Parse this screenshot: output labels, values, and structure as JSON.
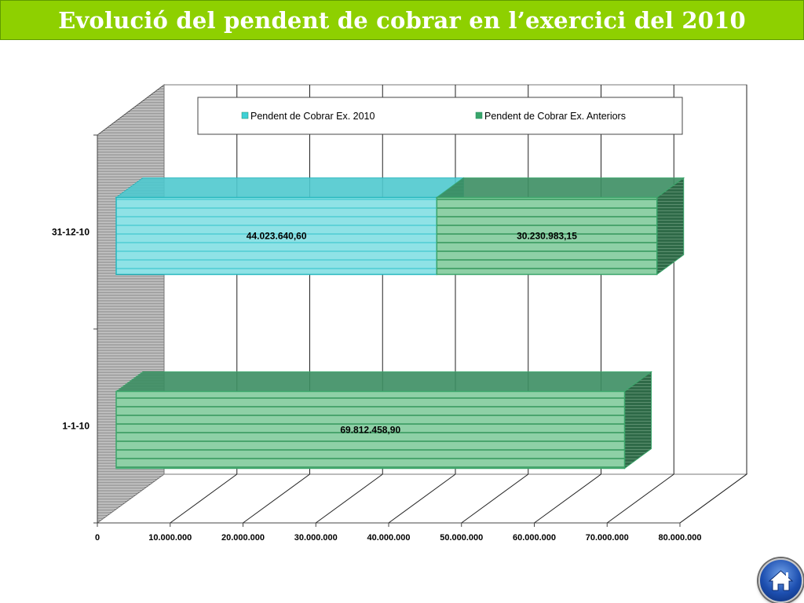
{
  "header": {
    "title": "Evolució del pendent de cobrar en l’exercici del 2010"
  },
  "chart_data": {
    "type": "bar",
    "orientation": "horizontal",
    "stacked": true,
    "three_d": true,
    "categories": [
      "31-12-10",
      "1-1-10"
    ],
    "series": [
      {
        "name": "Pendent de Cobrar Ex. 2010",
        "values": [
          44023640.6,
          0
        ],
        "labels": [
          "44.023.640,60",
          ""
        ],
        "color": "#3fd0d6"
      },
      {
        "name": "Pendent de Cobrar Ex. Anteriors",
        "values": [
          30230983.15,
          69812458.9
        ],
        "labels": [
          "30.230.983,15",
          "69.812.458,90"
        ],
        "color": "#3aa56a"
      }
    ],
    "x_ticks": [
      "0",
      "10.000.000",
      "20.000.000",
      "30.000.000",
      "40.000.000",
      "50.000.000",
      "60.000.000",
      "70.000.000",
      "80.000.000"
    ],
    "xlim": [
      0,
      80000000
    ],
    "grid": true,
    "legend_position": "top"
  },
  "nav": {
    "home_icon": "home-icon"
  }
}
